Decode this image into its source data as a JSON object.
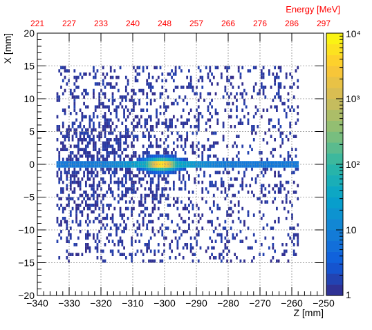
{
  "chart_data": {
    "type": "heatmap",
    "xlabel": "Z [mm]",
    "ylabel": "X [mm]",
    "top_axis_label": "Energy [MeV]",
    "xlim": [
      -340,
      -250
    ],
    "ylim": [
      -20,
      20
    ],
    "x_ticks": [
      -340,
      -330,
      -320,
      -310,
      -300,
      -290,
      -280,
      -270,
      -260,
      -250
    ],
    "x_tick_labels": [
      "−340",
      "−330",
      "−320",
      "−310",
      "−300",
      "−290",
      "−280",
      "−270",
      "−260",
      "−250"
    ],
    "y_ticks": [
      -20,
      -15,
      -10,
      -5,
      0,
      5,
      10,
      15,
      20
    ],
    "y_tick_labels": [
      "−20",
      "−15",
      "−10",
      "−5",
      "0",
      "5",
      "10",
      "15",
      "20"
    ],
    "top_ticks": [
      {
        "z": -340,
        "label": "221"
      },
      {
        "z": -330,
        "label": "227"
      },
      {
        "z": -320,
        "label": "233"
      },
      {
        "z": -310,
        "label": "240"
      },
      {
        "z": -300,
        "label": "248"
      },
      {
        "z": -290,
        "label": "257"
      },
      {
        "z": -280,
        "label": "266"
      },
      {
        "z": -270,
        "label": "276"
      },
      {
        "z": -260,
        "label": "286"
      },
      {
        "z": -250,
        "label": "297"
      }
    ],
    "colorbar": {
      "scale": "log",
      "range": [
        1,
        10000
      ],
      "ticks": [
        {
          "value": 1,
          "label": "1"
        },
        {
          "value": 10,
          "label": "10"
        },
        {
          "value": 100,
          "label": "10²"
        },
        {
          "value": 1000,
          "label": "10³"
        },
        {
          "value": 10000,
          "label": "10⁴"
        }
      ]
    },
    "grid": true,
    "filled_region": {
      "z_range": [
        -334,
        -258
      ],
      "x_range": [
        -15,
        15
      ]
    },
    "hotspot": {
      "z_center": -301,
      "x_center": 0,
      "peak_counts": 10000
    },
    "beam_band": {
      "z_range": [
        -334,
        -257
      ],
      "x_center": 0
    }
  },
  "colors": {
    "frame": "#000000",
    "grid": "#8c8c8c",
    "top_axis": "#ff0000",
    "palette": [
      "#352a87",
      "#0f5cdd",
      "#1481d6",
      "#06a4ca",
      "#2eb7a4",
      "#87bf77",
      "#d1bb59",
      "#fec832",
      "#f9fb0e"
    ]
  }
}
